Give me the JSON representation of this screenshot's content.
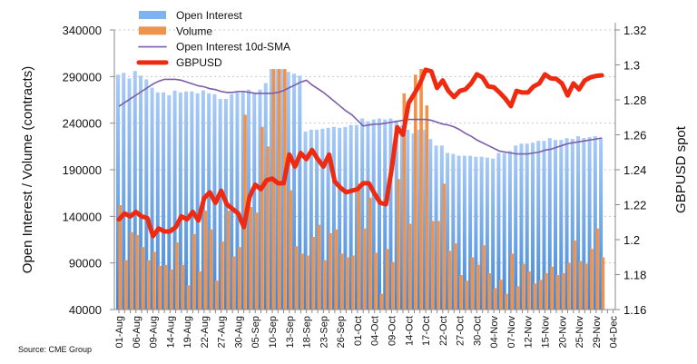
{
  "chart_data": {
    "type": "bar",
    "title": "",
    "source": "Source: CME Group",
    "ylabel_left": "Open Interest / Volume (contracts)",
    "ylabel_right": "GBPUSD spot",
    "ylim_left": [
      40000,
      340000
    ],
    "yticks_left": [
      "340000",
      "290000",
      "240000",
      "190000",
      "140000",
      "90000",
      "40000"
    ],
    "ylim_right": [
      1.16,
      1.32
    ],
    "yticks_right": [
      "1.32",
      "1.3",
      "1.28",
      "1.26",
      "1.24",
      "1.22",
      "1.2",
      "1.18",
      "1.16"
    ],
    "grid": "horizontal dotted",
    "legend_placement": "top",
    "x_tick_labels": [
      "01-Aug",
      "06-Aug",
      "09-Aug",
      "14-Aug",
      "19-Aug",
      "22-Aug",
      "27-Aug",
      "30-Aug",
      "05-Sep",
      "10-Sep",
      "13-Sep",
      "18-Sep",
      "23-Sep",
      "26-Sep",
      "01-Oct",
      "04-Oct",
      "09-Oct",
      "14-Oct",
      "17-Oct",
      "22-Oct",
      "27-Oct",
      "30-Oct",
      "04-Nov",
      "07-Nov",
      "12-Nov",
      "15-Nov",
      "20-Nov",
      "25-Nov",
      "29-Nov",
      "04-Dec"
    ],
    "series": [
      {
        "name": "Open Interest",
        "type": "bar",
        "axis": "left",
        "color": "#6fa8f0",
        "values": [
          292000,
          294000,
          288000,
          296000,
          291000,
          287000,
          278000,
          273000,
          273000,
          270000,
          275000,
          273000,
          274000,
          274000,
          272000,
          275000,
          272000,
          271000,
          266000,
          266000,
          271000,
          273000,
          274000,
          276000,
          272000,
          276000,
          283000,
          298000,
          298000,
          298000,
          295000,
          293000,
          291000,
          231000,
          233000,
          233000,
          234000,
          235000,
          236000,
          235000,
          236000,
          238000,
          238000,
          245000,
          242000,
          244000,
          245000,
          244000,
          245000,
          243000,
          238000,
          233000,
          229000,
          233000,
          233000,
          223000,
          216000,
          216000,
          208000,
          207000,
          205000,
          205000,
          205000,
          204000,
          204000,
          203000,
          202000,
          208000,
          208000,
          210000,
          216000,
          218000,
          218000,
          219000,
          221000,
          221000,
          224000,
          222000,
          222000,
          224000,
          223000,
          226000,
          224000,
          225000,
          226000,
          224000
        ]
      },
      {
        "name": "Volume",
        "type": "bar",
        "axis": "left",
        "color": "#f0924a",
        "values": [
          152000,
          93000,
          123000,
          120000,
          107000,
          93000,
          102000,
          87000,
          88000,
          83000,
          112000,
          88000,
          66000,
          121000,
          81000,
          146000,
          126000,
          71000,
          113000,
          146000,
          97000,
          107000,
          249000,
          150000,
          144000,
          236000,
          215000,
          298000,
          298000,
          298000,
          168000,
          108000,
          100000,
          98000,
          118000,
          131000,
          93000,
          122000,
          126000,
          100000,
          96000,
          98000,
          175000,
          127000,
          160000,
          101000,
          57000,
          105000,
          91000,
          180000,
          272000,
          132000,
          292000,
          300000,
          259000,
          135000,
          135000,
          175000,
          103000,
          111000,
          77000,
          71000,
          96000,
          88000,
          109000,
          79000,
          63000,
          72000,
          57000,
          100000,
          65000,
          89000,
          81000,
          68000,
          72000,
          79000,
          86000,
          77000,
          79000,
          90000,
          114000,
          92000,
          89000,
          105000,
          127000,
          96000
        ]
      },
      {
        "name": "Open Interest 10d-SMA",
        "type": "line",
        "axis": "left",
        "color": "#7b5ea7",
        "values": [
          258000,
          262000,
          266000,
          270000,
          274000,
          278000,
          282000,
          285000,
          287000,
          287000,
          287000,
          286000,
          284000,
          282000,
          280000,
          279000,
          277000,
          276000,
          274000,
          273000,
          273000,
          274000,
          274000,
          273000,
          272000,
          272000,
          272000,
          272000,
          273000,
          275000,
          278000,
          281000,
          284000,
          286000,
          281000,
          277000,
          273000,
          268000,
          263000,
          258000,
          253000,
          249000,
          243000,
          237000,
          238000,
          239000,
          239000,
          240000,
          241000,
          242000,
          243000,
          244000,
          244000,
          244000,
          244000,
          243000,
          241000,
          239000,
          238000,
          236000,
          233000,
          229000,
          226000,
          222000,
          219000,
          216000,
          213000,
          210000,
          209000,
          208000,
          207000,
          207000,
          207000,
          208000,
          209000,
          211000,
          212000,
          214000,
          216000,
          218000,
          219000,
          220000,
          221000,
          222000,
          223000,
          224000
        ]
      },
      {
        "name": "GBPUSD",
        "type": "line",
        "axis": "right",
        "color": "#ee2a10",
        "values": [
          1.2116,
          1.215,
          1.2133,
          1.2159,
          1.2133,
          1.2124,
          1.202,
          1.2064,
          1.2047,
          1.2047,
          1.2072,
          1.2133,
          1.2116,
          1.2159,
          1.211,
          1.2237,
          1.2271,
          1.2211,
          1.228,
          1.2202,
          1.2176,
          1.215,
          1.2072,
          1.2245,
          1.2314,
          1.2289,
          1.234,
          1.2349,
          1.2323,
          1.2323,
          1.2487,
          1.2418,
          1.2496,
          1.2461,
          1.2513,
          1.2461,
          1.2418,
          1.2487,
          1.2332,
          1.2297,
          1.2271,
          1.228,
          1.2289,
          1.2323,
          1.2323,
          1.2263,
          1.2211,
          1.2202,
          1.2401,
          1.2643,
          1.26,
          1.2782,
          1.2834,
          1.2894,
          1.2972,
          1.2963,
          1.2868,
          1.2911,
          1.2851,
          1.2816,
          1.2851,
          1.286,
          1.2894,
          1.2946,
          1.2929,
          1.2877,
          1.2872,
          1.2842,
          1.2808,
          1.2764,
          1.2851,
          1.2842,
          1.2842,
          1.2877,
          1.2894,
          1.2946,
          1.2923,
          1.292,
          1.2894,
          1.2825,
          1.2894,
          1.286,
          1.2911,
          1.2929,
          1.2937,
          1.294
        ]
      }
    ]
  }
}
